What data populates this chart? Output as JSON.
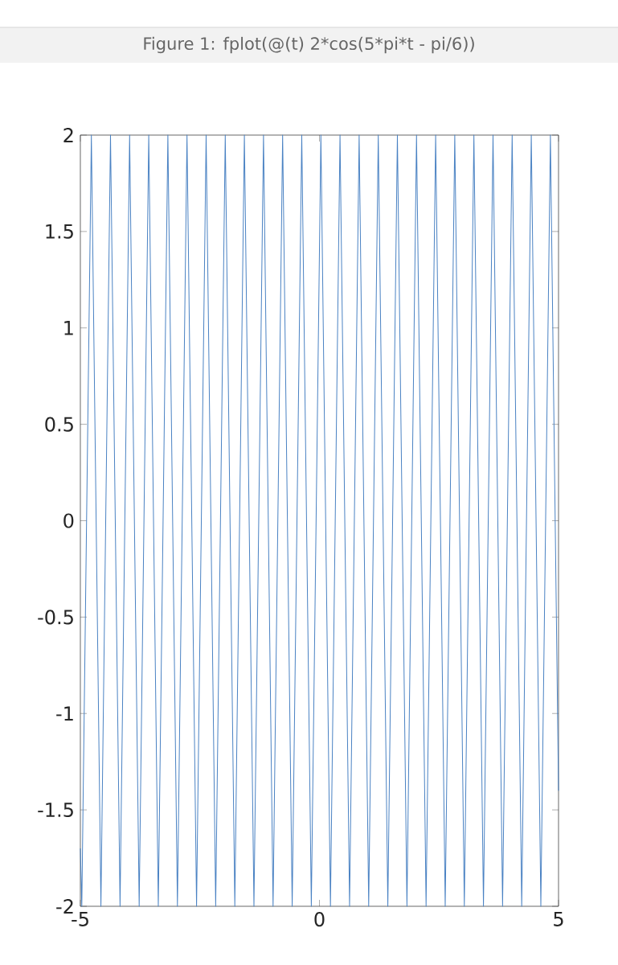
{
  "chart_data": {
    "type": "line",
    "title": "Figure 1: fplot(@(t) 2*cos(5*pi*t - pi/6))",
    "xlim": [
      -5,
      5
    ],
    "ylim": [
      -2,
      2
    ],
    "xticks": [
      -5,
      0,
      5
    ],
    "yticks": [
      -2,
      -1.5,
      -1,
      -0.5,
      0,
      0.5,
      1,
      1.5,
      2
    ],
    "series": [
      {
        "color": "#4a82c3",
        "x": [
          -5,
          -4.97,
          -4.77,
          -4.57,
          -4.37,
          -4.17,
          -3.97,
          -3.77,
          -3.57,
          -3.37,
          -3.17,
          -2.97,
          -2.77,
          -2.57,
          -2.37,
          -2.17,
          -1.97,
          -1.77,
          -1.57,
          -1.37,
          -1.17,
          -0.97,
          -0.77,
          -0.57,
          -0.37,
          -0.17,
          0.03,
          0.23,
          0.43,
          0.63,
          0.83,
          1.03,
          1.23,
          1.43,
          1.63,
          1.83,
          2.03,
          2.23,
          2.43,
          2.63,
          2.83,
          3.03,
          3.23,
          3.43,
          3.63,
          3.83,
          4.03,
          4.23,
          4.43,
          4.63,
          4.83,
          5
        ],
        "values": [
          -1.7,
          -2,
          2,
          -2,
          2,
          -2,
          2,
          -2,
          2,
          -2,
          2,
          -2,
          2,
          -2,
          2,
          -2,
          2,
          -2,
          2,
          -2,
          2,
          -2,
          2,
          -2,
          2,
          -2,
          2,
          -2,
          2,
          -2,
          2,
          -2,
          2,
          -2,
          2,
          -2,
          2,
          -2,
          2,
          -2,
          2,
          -2,
          2,
          -2,
          2,
          -2,
          2,
          -2,
          2,
          -2,
          2,
          -1.4
        ]
      }
    ]
  }
}
